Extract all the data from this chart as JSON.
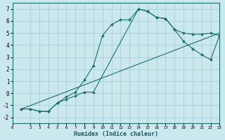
{
  "xlabel": "Humidex (Indice chaleur)",
  "bg_color": "#cce8ef",
  "grid_color": "#9fccd6",
  "line_color": "#1a6e6e",
  "xlim": [
    0,
    23
  ],
  "ylim": [
    -2.5,
    7.5
  ],
  "xticks": [
    0,
    2,
    3,
    4,
    5,
    6,
    7,
    8,
    9,
    10,
    11,
    12,
    13,
    14,
    15,
    16,
    17,
    18,
    19,
    20,
    21,
    22,
    23
  ],
  "yticks": [
    -2,
    -1,
    0,
    1,
    2,
    3,
    4,
    5,
    6,
    7
  ],
  "line1_x": [
    1,
    2,
    3,
    4,
    5,
    6,
    7,
    8,
    9,
    10,
    11,
    12,
    13,
    14,
    15,
    16,
    17,
    18,
    19,
    20,
    21,
    22,
    23
  ],
  "line1_y": [
    -1.3,
    -1.3,
    -1.5,
    -1.5,
    -0.8,
    -0.3,
    0.1,
    1.1,
    2.3,
    4.8,
    5.7,
    6.1,
    6.1,
    7.0,
    6.8,
    6.3,
    6.2,
    5.3,
    5.0,
    4.9,
    4.9,
    5.0,
    4.8
  ],
  "line2_x": [
    1,
    2,
    3,
    4,
    5,
    6,
    7,
    8,
    9,
    14,
    15,
    16,
    17,
    18,
    19,
    20,
    21,
    22,
    23
  ],
  "line2_y": [
    -1.3,
    -1.3,
    -1.5,
    -1.5,
    -0.8,
    -0.5,
    -0.2,
    0.1,
    0.1,
    7.0,
    6.8,
    6.3,
    6.2,
    5.3,
    4.3,
    3.7,
    3.2,
    2.8,
    4.8
  ],
  "line3_x": [
    1,
    23
  ],
  "line3_y": [
    -1.3,
    5.0
  ]
}
